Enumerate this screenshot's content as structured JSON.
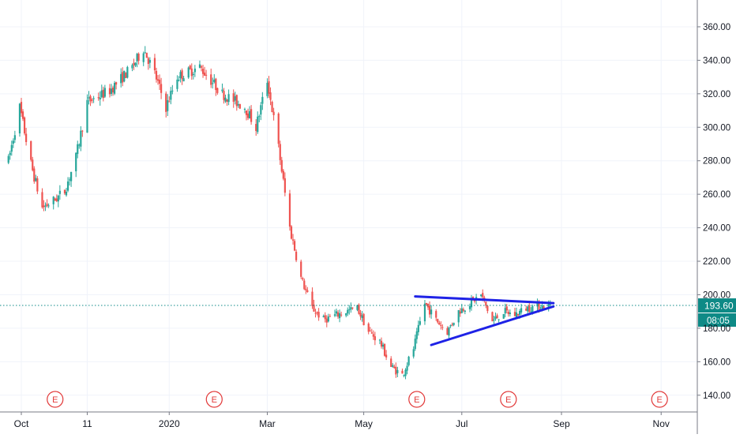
{
  "chart_data": {
    "type": "candlestick",
    "title": "",
    "xlabel": "",
    "ylabel": "",
    "ylim": [
      130,
      376
    ],
    "grid": true,
    "y_ticks": [
      "140.00",
      "160.00",
      "180.00",
      "200.00",
      "220.00",
      "240.00",
      "260.00",
      "280.00",
      "300.00",
      "320.00",
      "340.00",
      "360.00"
    ],
    "x_ticks": [
      {
        "label": "Oct",
        "date": "2019-10-01"
      },
      {
        "label": "11",
        "date": "2019-11-11"
      },
      {
        "label": "2020",
        "date": "2020-01-01"
      },
      {
        "label": "Mar",
        "date": "2020-03-02"
      },
      {
        "label": "May",
        "date": "2020-05-01"
      },
      {
        "label": "Jul",
        "date": "2020-07-01"
      },
      {
        "label": "Sep",
        "date": "2020-09-01"
      },
      {
        "label": "Nov",
        "date": "2020-11-02"
      }
    ],
    "date_range": [
      "2019-09-23",
      "2020-08-25"
    ],
    "price_path": [
      [
        "2019-09-23",
        280
      ],
      [
        "2019-09-30",
        312
      ],
      [
        "2019-10-07",
        278
      ],
      [
        "2019-10-14",
        252
      ],
      [
        "2019-10-21",
        256
      ],
      [
        "2019-10-28",
        262
      ],
      [
        "2019-11-04",
        282
      ],
      [
        "2019-11-11",
        315
      ],
      [
        "2019-11-25",
        322
      ],
      [
        "2019-12-09",
        336
      ],
      [
        "2019-12-16",
        347
      ],
      [
        "2019-12-23",
        332
      ],
      [
        "2019-12-30",
        312
      ],
      [
        "2020-01-06",
        330
      ],
      [
        "2020-01-20",
        336
      ],
      [
        "2020-02-03",
        320
      ],
      [
        "2020-02-17",
        312
      ],
      [
        "2020-02-24",
        300
      ],
      [
        "2020-03-02",
        328
      ],
      [
        "2020-03-09",
        288
      ],
      [
        "2020-03-16",
        240
      ],
      [
        "2020-03-23",
        210
      ],
      [
        "2020-03-30",
        192
      ],
      [
        "2020-04-06",
        185
      ],
      [
        "2020-04-20",
        190
      ],
      [
        "2020-04-27",
        192
      ],
      [
        "2020-05-04",
        178
      ],
      [
        "2020-05-11",
        172
      ],
      [
        "2020-05-18",
        157
      ],
      [
        "2020-05-25",
        152
      ],
      [
        "2020-06-01",
        168
      ],
      [
        "2020-06-08",
        195
      ],
      [
        "2020-06-15",
        185
      ],
      [
        "2020-06-22",
        178
      ],
      [
        "2020-06-29",
        190
      ],
      [
        "2020-07-06",
        195
      ],
      [
        "2020-07-13",
        200
      ],
      [
        "2020-07-20",
        184
      ],
      [
        "2020-07-27",
        190
      ],
      [
        "2020-08-03",
        188
      ],
      [
        "2020-08-10",
        192
      ],
      [
        "2020-08-17",
        193
      ],
      [
        "2020-08-25",
        193.6
      ]
    ],
    "last_price": "193.60",
    "last_price_value": 193.6,
    "countdown": "08:05",
    "earnings_events": [
      {
        "label": "E",
        "date": "2019-10-22"
      },
      {
        "label": "E",
        "date": "2020-01-29"
      },
      {
        "label": "E",
        "date": "2020-06-03"
      },
      {
        "label": "E",
        "date": "2020-07-30"
      },
      {
        "label": "E",
        "date": "2020-11-01"
      }
    ],
    "trendlines": [
      {
        "name": "upper",
        "start": [
          "2020-06-02",
          199
        ],
        "end": [
          "2020-08-27",
          195
        ]
      },
      {
        "name": "lower",
        "start": [
          "2020-06-12",
          170
        ],
        "end": [
          "2020-08-27",
          193
        ]
      }
    ],
    "colors": {
      "up": "#26a69a",
      "down": "#ef5350",
      "trendline": "#1e22e6",
      "last_price": "#0e8a86",
      "price_line": "#0f8a88",
      "grid": "#f0f3fa",
      "axis_text": "#131722",
      "event_marker": "#e23b3b"
    }
  }
}
